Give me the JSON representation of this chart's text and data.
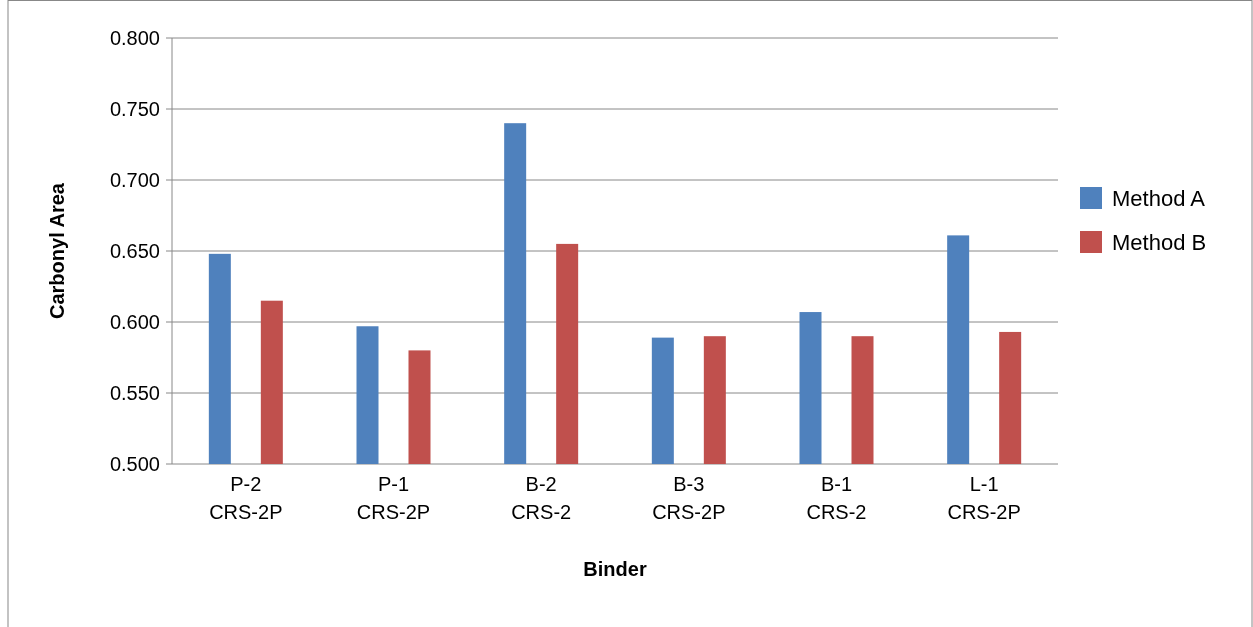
{
  "chart_data": {
    "type": "bar",
    "xlabel": "Binder",
    "ylabel": "Carbonyl Area",
    "categories": [
      "P-2\nCRS-2P",
      "P-1\nCRS-2P",
      "B-2\nCRS-2",
      "B-3\nCRS-2P",
      "B-1\nCRS-2",
      "L-1\nCRS-2P"
    ],
    "series": [
      {
        "name": "Method A",
        "color": "#4f81bd",
        "values": [
          0.648,
          0.597,
          0.74,
          0.589,
          0.607,
          0.661
        ]
      },
      {
        "name": "Method B",
        "color": "#c0504d",
        "values": [
          0.615,
          0.58,
          0.655,
          0.59,
          0.59,
          0.593
        ]
      }
    ],
    "ylim": [
      0.5,
      0.8
    ],
    "yticks": [
      {
        "value": 0.5,
        "label": "0.500"
      },
      {
        "value": 0.55,
        "label": "0.550"
      },
      {
        "value": 0.6,
        "label": "0.600"
      },
      {
        "value": 0.65,
        "label": "0.650"
      },
      {
        "value": 0.7,
        "label": "0.700"
      },
      {
        "value": 0.75,
        "label": "0.750"
      },
      {
        "value": 0.8,
        "label": "0.800"
      }
    ],
    "grid": "y",
    "legend": "right"
  }
}
